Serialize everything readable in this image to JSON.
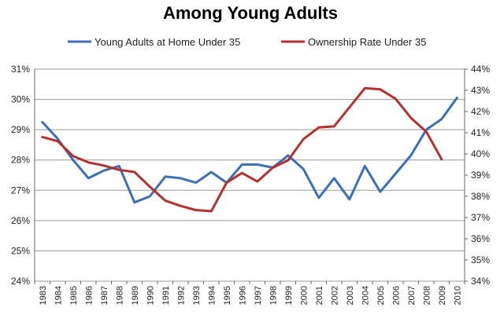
{
  "chart_data": {
    "type": "line",
    "title": "Among Young Adults",
    "categories": [
      "1983",
      "1984",
      "1985",
      "1986",
      "1987",
      "1988",
      "1989",
      "1990",
      "1991",
      "1992",
      "1993",
      "1994",
      "1995",
      "1996",
      "1997",
      "1998",
      "1999",
      "2000",
      "2001",
      "2002",
      "2003",
      "2004",
      "2005",
      "2006",
      "2007",
      "2008",
      "2009",
      "2010"
    ],
    "y_left": {
      "min": 24,
      "max": 31,
      "step": 1,
      "ticks": [
        "24%",
        "25%",
        "26%",
        "27%",
        "28%",
        "29%",
        "30%",
        "31%"
      ]
    },
    "y_right": {
      "min": 34,
      "max": 44,
      "step": 1,
      "ticks": [
        "34%",
        "35%",
        "36%",
        "37%",
        "38%",
        "39%",
        "40%",
        "41%",
        "42%",
        "43%",
        "44%"
      ]
    },
    "grid": true,
    "legend_position": "top",
    "series": [
      {
        "name": "Young Adults at Home Under 35",
        "axis": "left",
        "color": "#3c6fb5",
        "values": [
          29.25,
          28.7,
          28.0,
          27.4,
          27.65,
          27.8,
          26.6,
          26.8,
          27.45,
          27.4,
          27.25,
          27.6,
          27.25,
          27.85,
          27.85,
          27.75,
          28.15,
          27.7,
          26.75,
          27.4,
          26.7,
          27.8,
          26.95,
          27.55,
          28.15,
          29.0,
          29.35,
          30.05
        ]
      },
      {
        "name": "Ownership Rate Under 35",
        "axis": "right",
        "color": "#b5302f",
        "values": [
          40.8,
          40.6,
          39.9,
          39.6,
          39.45,
          39.25,
          39.15,
          38.45,
          37.8,
          37.55,
          37.35,
          37.3,
          38.65,
          39.1,
          38.7,
          39.35,
          39.7,
          40.7,
          41.25,
          41.3,
          42.2,
          43.1,
          43.05,
          42.6,
          41.7,
          41.05,
          39.75,
          null
        ]
      }
    ]
  }
}
